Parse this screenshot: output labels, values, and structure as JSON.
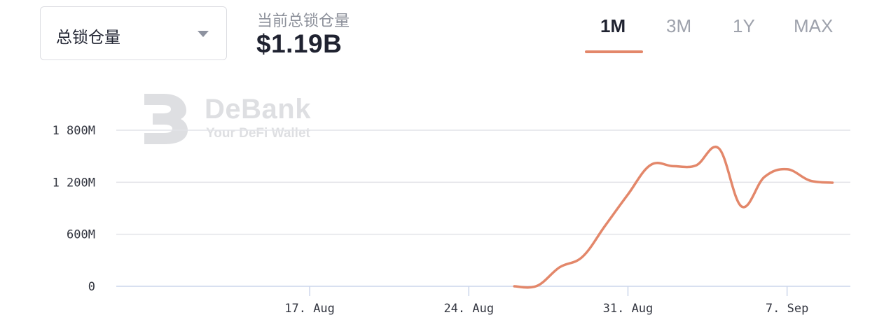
{
  "metric_select": {
    "value": "总锁仓量"
  },
  "summary": {
    "label": "当前总锁仓量",
    "value": "$1.19B"
  },
  "range_tabs": [
    {
      "label": "1M",
      "active": true
    },
    {
      "label": "3M",
      "active": false
    },
    {
      "label": "1Y",
      "active": false
    },
    {
      "label": "MAX",
      "active": false
    }
  ],
  "watermark": {
    "title": "DeBank",
    "subtitle": "Your DeFi Wallet"
  },
  "colors": {
    "line": "#e3876a",
    "grid": "#e2e3e8",
    "axis": "#ccd6eb",
    "accent": "#e3876a"
  },
  "chart_data": {
    "type": "line",
    "title": "",
    "xlabel": "",
    "ylabel": "",
    "x_range": [
      "2021-08-08",
      "2021-09-10"
    ],
    "ylim": [
      0,
      1800000000
    ],
    "y_ticks": [
      {
        "value": 0,
        "label": "0"
      },
      {
        "value": 600000000,
        "label": "600M"
      },
      {
        "value": 1200000000,
        "label": "1 200M"
      },
      {
        "value": 1800000000,
        "label": "1 800M"
      }
    ],
    "x_ticks": [
      {
        "date": "2021-08-17",
        "label": "17. Aug"
      },
      {
        "date": "2021-08-24",
        "label": "24. Aug"
      },
      {
        "date": "2021-08-31",
        "label": "31. Aug"
      },
      {
        "date": "2021-09-07",
        "label": "7. Sep"
      }
    ],
    "grid": true,
    "legend": "none",
    "series": [
      {
        "values": [
          {
            "date": "2021-08-26",
            "value": 0
          },
          {
            "date": "2021-08-27",
            "value": 5000000
          },
          {
            "date": "2021-08-28",
            "value": 220000000
          },
          {
            "date": "2021-08-29",
            "value": 340000000
          },
          {
            "date": "2021-08-30",
            "value": 700000000
          },
          {
            "date": "2021-08-31",
            "value": 1060000000
          },
          {
            "date": "2021-09-01",
            "value": 1400000000
          },
          {
            "date": "2021-09-02",
            "value": 1385000000
          },
          {
            "date": "2021-09-03",
            "value": 1395000000
          },
          {
            "date": "2021-09-04",
            "value": 1590000000
          },
          {
            "date": "2021-09-05",
            "value": 920000000
          },
          {
            "date": "2021-09-06",
            "value": 1260000000
          },
          {
            "date": "2021-09-07",
            "value": 1350000000
          },
          {
            "date": "2021-09-08",
            "value": 1220000000
          },
          {
            "date": "2021-09-09",
            "value": 1195000000
          }
        ]
      }
    ]
  }
}
